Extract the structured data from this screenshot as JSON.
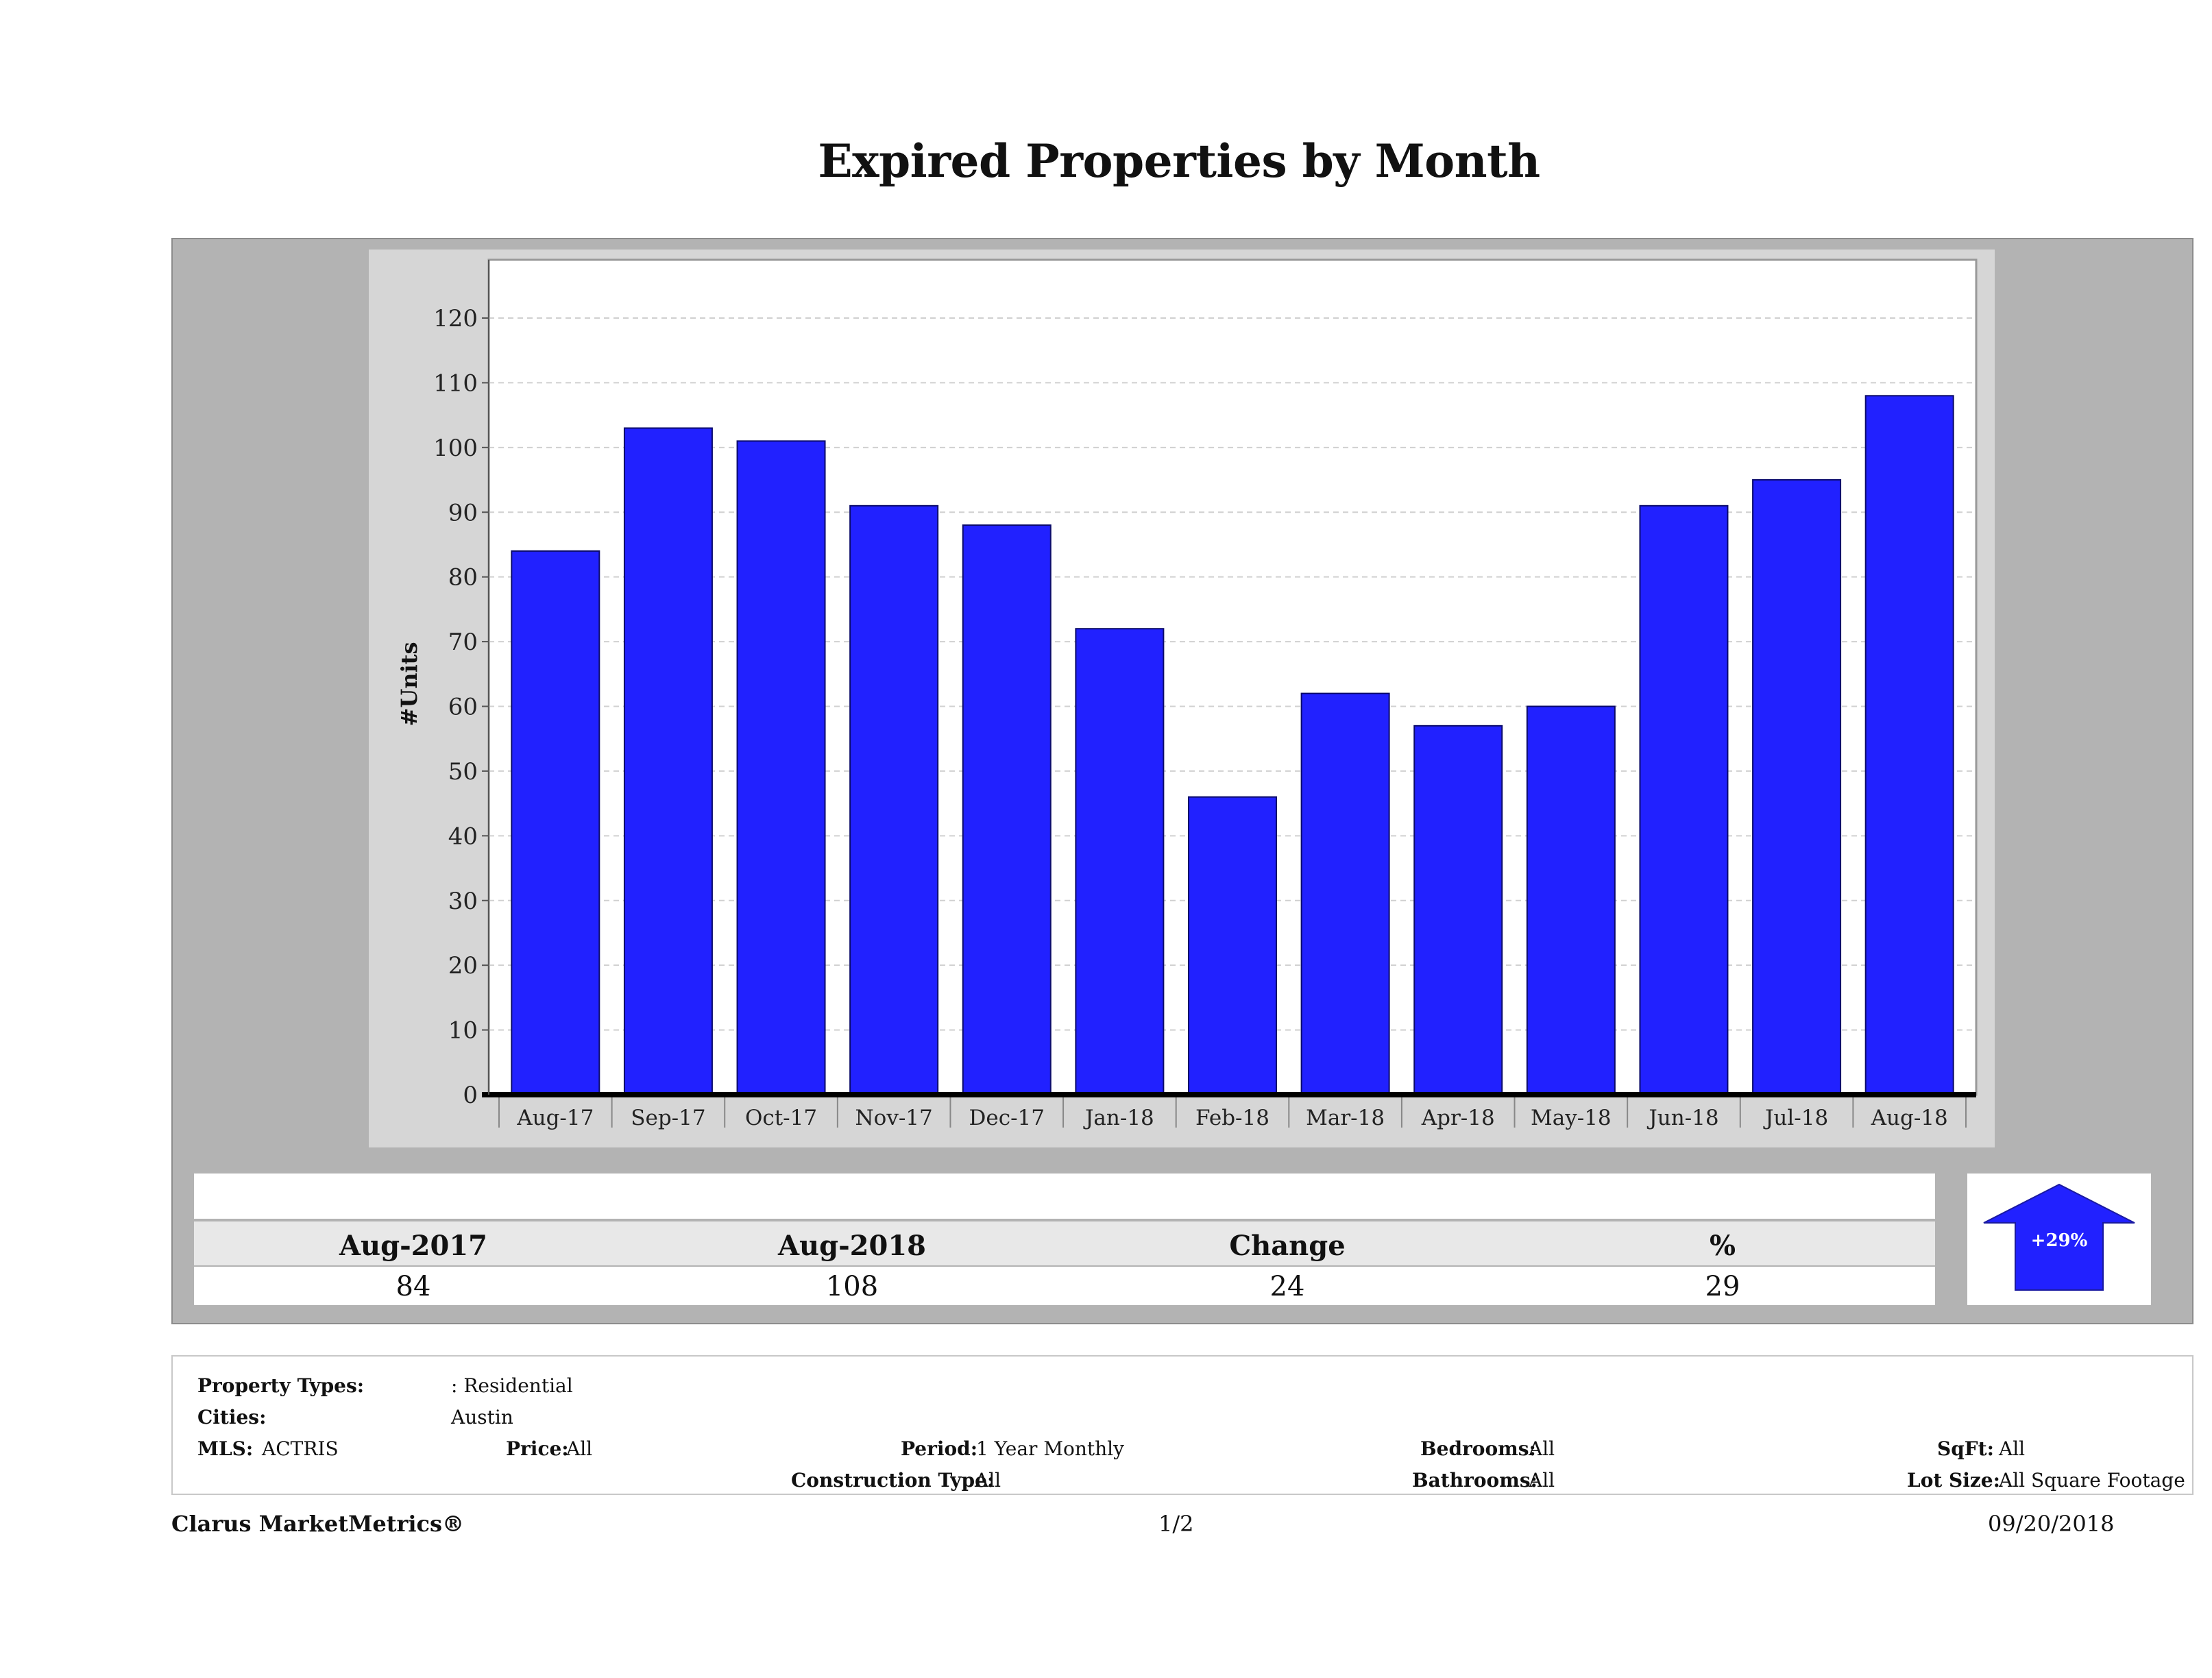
{
  "title": "Expired Properties by Month",
  "chart_data": {
    "type": "bar",
    "categories": [
      "Aug-17",
      "Sep-17",
      "Oct-17",
      "Nov-17",
      "Dec-17",
      "Jan-18",
      "Feb-18",
      "Mar-18",
      "Apr-18",
      "May-18",
      "Jun-18",
      "Jul-18",
      "Aug-18"
    ],
    "values": [
      84,
      103,
      101,
      91,
      88,
      72,
      46,
      62,
      57,
      60,
      91,
      95,
      108
    ],
    "ylabel": "#Units",
    "xlabel": "",
    "ylim": [
      0,
      120
    ],
    "yticks": [
      0,
      10,
      20,
      30,
      40,
      50,
      60,
      70,
      80,
      90,
      100,
      110,
      120
    ],
    "grid": true,
    "bar_color": "#2121ff"
  },
  "summary": {
    "headers": [
      "Aug-2017",
      "Aug-2018",
      "Change",
      "%"
    ],
    "values": [
      "84",
      "108",
      "24",
      "29"
    ]
  },
  "indicator": {
    "label": "+29%",
    "direction": "up",
    "color": "#2121ff"
  },
  "filters": {
    "property_types_label": "Property Types:",
    "property_types_value": ": Residential",
    "cities_label": "Cities:",
    "cities_value": "Austin",
    "mls_label": "MLS:",
    "mls_value": "ACTRIS",
    "price_label": "Price:",
    "price_value": "All",
    "period_label": "Period:",
    "period_value": "1 Year Monthly",
    "construction_label": "Construction Type:",
    "construction_value": "All",
    "bedrooms_label": "Bedrooms:",
    "bedrooms_value": "All",
    "bathrooms_label": "Bathrooms:",
    "bathrooms_value": "All",
    "sqft_label": "SqFt:",
    "sqft_value": "All",
    "lotsize_label": "Lot Size:",
    "lotsize_value": "All Square Footage"
  },
  "footer": {
    "brand": "Clarus MarketMetrics®",
    "page": "1/2",
    "date": "09/20/2018"
  }
}
